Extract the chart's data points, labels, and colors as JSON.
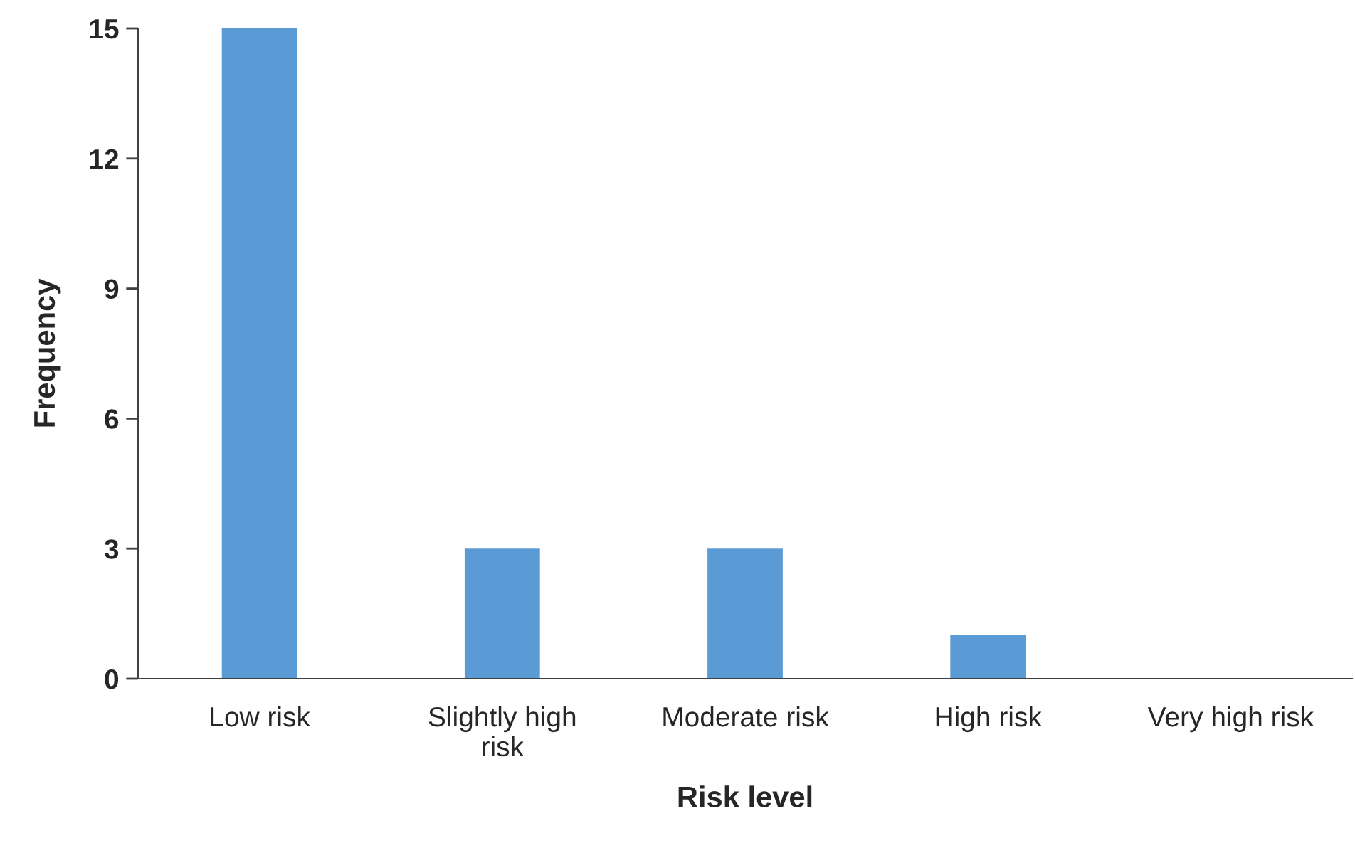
{
  "chart_data": {
    "type": "bar",
    "xlabel": "Risk level",
    "ylabel": "Frequency",
    "categories": [
      "Low risk",
      "Slightly high risk",
      "Moderate risk",
      "High risk",
      "Very high risk"
    ],
    "values": [
      15,
      3,
      3,
      1,
      0
    ],
    "color": "#5b9bd5",
    "ylim": [
      0,
      15
    ],
    "yticks": [
      0,
      3,
      6,
      9,
      12,
      15
    ],
    "grid": false,
    "legend": false
  }
}
